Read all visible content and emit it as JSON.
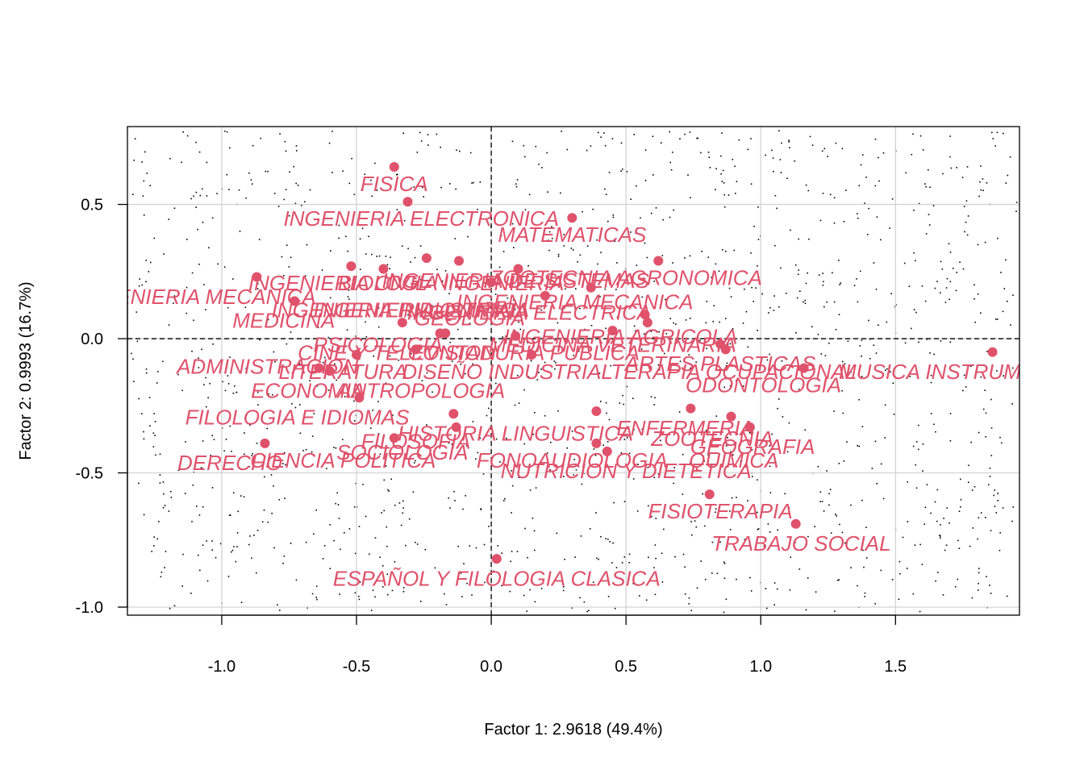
{
  "chart_data": {
    "type": "scatter",
    "xlabel": "Factor 1: 2.9618 (49.4%)",
    "ylabel": "Factor 2: 0.9993 (16.7%)",
    "xlim": [
      -1.35,
      1.96
    ],
    "ylim": [
      -1.03,
      0.79
    ],
    "xticks": [
      -1.0,
      -0.5,
      0.0,
      0.5,
      1.0,
      1.5
    ],
    "xtick_labels": [
      "-1.0",
      "-0.5",
      "0.0",
      "0.5",
      "1.0",
      "1.5"
    ],
    "yticks": [
      -1.0,
      -0.5,
      0.0,
      0.5
    ],
    "ytick_labels": [
      "-1.0",
      "-0.5",
      "0.0",
      "0.5"
    ],
    "grid": true,
    "reference_lines": {
      "x": 0,
      "y": 0
    },
    "point_color": "#E0526B",
    "label_color": "#E0526B",
    "grid_color": "#D3D3D3",
    "background_noise": "dotted",
    "points": [
      {
        "x": -0.36,
        "y": 0.64
      },
      {
        "x": -0.31,
        "y": 0.51
      },
      {
        "x": 0.3,
        "y": 0.45
      },
      {
        "x": 0.62,
        "y": 0.29
      },
      {
        "x": -0.24,
        "y": 0.3
      },
      {
        "x": -0.12,
        "y": 0.29
      },
      {
        "x": -0.52,
        "y": 0.27
      },
      {
        "x": -0.4,
        "y": 0.26
      },
      {
        "x": 0.1,
        "y": 0.26
      },
      {
        "x": -0.87,
        "y": 0.23
      },
      {
        "x": 0.0,
        "y": 0.21
      },
      {
        "x": 0.37,
        "y": 0.19
      },
      {
        "x": -0.73,
        "y": 0.14
      },
      {
        "x": 0.2,
        "y": 0.16
      },
      {
        "x": -0.33,
        "y": 0.06
      },
      {
        "x": 0.58,
        "y": 0.06
      },
      {
        "x": 0.57,
        "y": 0.09
      },
      {
        "x": 0.45,
        "y": 0.03
      },
      {
        "x": -0.19,
        "y": 0.02
      },
      {
        "x": -0.17,
        "y": 0.02
      },
      {
        "x": 0.09,
        "y": 0.01
      },
      {
        "x": 0.85,
        "y": -0.02
      },
      {
        "x": 0.87,
        "y": -0.04
      },
      {
        "x": -0.28,
        "y": -0.04
      },
      {
        "x": -0.5,
        "y": -0.06
      },
      {
        "x": 0.15,
        "y": -0.06
      },
      {
        "x": -0.6,
        "y": -0.12
      },
      {
        "x": -0.64,
        "y": -0.11
      },
      {
        "x": 1.16,
        "y": -0.11
      },
      {
        "x": 1.86,
        "y": -0.05
      },
      {
        "x": -0.49,
        "y": -0.22
      },
      {
        "x": 0.74,
        "y": -0.26
      },
      {
        "x": 0.39,
        "y": -0.27
      },
      {
        "x": -0.14,
        "y": -0.28
      },
      {
        "x": 0.89,
        "y": -0.29
      },
      {
        "x": -0.13,
        "y": -0.33
      },
      {
        "x": 0.96,
        "y": -0.33
      },
      {
        "x": -0.36,
        "y": -0.37
      },
      {
        "x": 0.39,
        "y": -0.39
      },
      {
        "x": -0.84,
        "y": -0.39
      },
      {
        "x": 0.43,
        "y": -0.42
      },
      {
        "x": 0.81,
        "y": -0.58
      },
      {
        "x": 1.13,
        "y": -0.69
      },
      {
        "x": 0.02,
        "y": -0.82
      }
    ],
    "labels": [
      {
        "text": "FISICA",
        "x": -0.36,
        "y": 0.55
      },
      {
        "text": "INGENIERIA ELECTRONICA",
        "x": -0.26,
        "y": 0.42
      },
      {
        "text": "MATEMATICAS",
        "x": 0.3,
        "y": 0.36
      },
      {
        "text": "ZOOTECNIA AGRONOMICA",
        "x": 0.5,
        "y": 0.2
      },
      {
        "text": "INGENIERIA DE SISTEMAS",
        "x": 0.09,
        "y": 0.19
      },
      {
        "text": "INGENIERIA CIVIL",
        "x": -0.57,
        "y": 0.18
      },
      {
        "text": "BIOLOGIA INGENIERIA",
        "x": -0.15,
        "y": 0.18
      },
      {
        "text": "INGENIERIA MECANICA",
        "x": -1.09,
        "y": 0.13
      },
      {
        "text": "INGENIERIA MECANICA",
        "x": 0.31,
        "y": 0.11
      },
      {
        "text": "INGENIERIA INDUSTRIAL",
        "x": -0.35,
        "y": 0.08
      },
      {
        "text": "INGENIERIA ELECTRICA",
        "x": 0.14,
        "y": 0.07
      },
      {
        "text": "INGENIERIA QUIMICA",
        "x": -0.26,
        "y": 0.08
      },
      {
        "text": "GEOLOGIA",
        "x": -0.08,
        "y": 0.05
      },
      {
        "text": "MEDICINA",
        "x": -0.77,
        "y": 0.04
      },
      {
        "text": "INGENIERIA AGRICOLA",
        "x": 0.48,
        "y": -0.02
      },
      {
        "text": "PSICOLOGIA",
        "x": -0.42,
        "y": -0.05
      },
      {
        "text": "MEDICINA VETERINARIA",
        "x": 0.45,
        "y": -0.05
      },
      {
        "text": "CINE Y TELEVISION",
        "x": -0.35,
        "y": -0.08
      },
      {
        "text": "CONTADURIA PUBLICA",
        "x": 0.12,
        "y": -0.08
      },
      {
        "text": "ADMINISTRACION",
        "x": -0.83,
        "y": -0.13
      },
      {
        "text": "LITERATURA",
        "x": -0.55,
        "y": -0.15
      },
      {
        "text": "DISEÑO INDUSTRIAL",
        "x": 0.06,
        "y": -0.15
      },
      {
        "text": "ARTES PLASTICAS",
        "x": 0.85,
        "y": -0.12
      },
      {
        "text": "TERAPIA OCUPACIONAL",
        "x": 0.9,
        "y": -0.15
      },
      {
        "text": "MUSICA INSTRUMENTAL",
        "x": 1.75,
        "y": -0.15
      },
      {
        "text": "ECONOMIA",
        "x": -0.68,
        "y": -0.22
      },
      {
        "text": "ANTROPOLOGIA",
        "x": -0.26,
        "y": -0.22
      },
      {
        "text": "ODONTOLOGIA",
        "x": 1.01,
        "y": -0.2
      },
      {
        "text": "FILOLOGIA E IDIOMAS",
        "x": -0.72,
        "y": -0.32
      },
      {
        "text": "HISTORIA LINGUISTICA",
        "x": 0.09,
        "y": -0.38
      },
      {
        "text": "ENFERMERIA",
        "x": 0.72,
        "y": -0.36
      },
      {
        "text": "ZOOTECNIA",
        "x": 0.82,
        "y": -0.4
      },
      {
        "text": "GEOGRAFIA",
        "x": 0.97,
        "y": -0.43
      },
      {
        "text": "FILOSOFIA",
        "x": -0.28,
        "y": -0.41
      },
      {
        "text": "SOCIOLOGIA",
        "x": -0.33,
        "y": -0.45
      },
      {
        "text": "FONOAUDIOLOGIA",
        "x": 0.3,
        "y": -0.48
      },
      {
        "text": "QUIMICA",
        "x": 0.9,
        "y": -0.48
      },
      {
        "text": "DERECHO",
        "x": -0.97,
        "y": -0.49
      },
      {
        "text": "CIENCIA POLITICA",
        "x": -0.55,
        "y": -0.48
      },
      {
        "text": "NUTRICION Y DIETETICA",
        "x": 0.5,
        "y": -0.52
      },
      {
        "text": "FISIOTERAPIA",
        "x": 0.85,
        "y": -0.67
      },
      {
        "text": "TRABAJO SOCIAL",
        "x": 1.15,
        "y": -0.79
      },
      {
        "text": "ESPAÑOL Y FILOLOGIA CLASICA",
        "x": 0.02,
        "y": -0.92
      }
    ]
  }
}
